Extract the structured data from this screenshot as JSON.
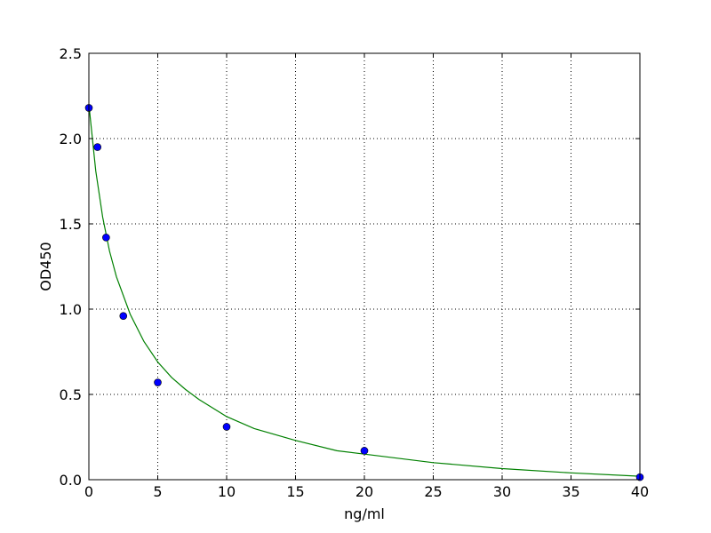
{
  "chart_data": {
    "type": "scatter",
    "title": "",
    "xlabel": "ng/ml",
    "ylabel": "OD450",
    "xlim": [
      0,
      40
    ],
    "ylim": [
      0,
      2.5
    ],
    "xticks": [
      0,
      5,
      10,
      15,
      20,
      25,
      30,
      35,
      40
    ],
    "yticks": [
      0.0,
      0.5,
      1.0,
      1.5,
      2.0,
      2.5
    ],
    "xtick_labels": [
      "0",
      "5",
      "10",
      "15",
      "20",
      "25",
      "30",
      "35",
      "40"
    ],
    "ytick_labels": [
      "0.0",
      "0.5",
      "1.0",
      "1.5",
      "2.0",
      "2.5"
    ],
    "grid": true,
    "series": [
      {
        "kind": "points",
        "color": "#0000ff",
        "x": [
          0,
          0.625,
          1.25,
          2.5,
          5,
          10,
          20,
          40
        ],
        "y": [
          2.18,
          1.95,
          1.42,
          0.96,
          0.57,
          0.31,
          0.17,
          0.015
        ]
      },
      {
        "kind": "fit-curve",
        "color": "#008000",
        "x": [
          0,
          0.5,
          1,
          1.5,
          2,
          3,
          4,
          5,
          6,
          7,
          8,
          10,
          12,
          15,
          18,
          20,
          25,
          30,
          35,
          40
        ],
        "y": [
          2.2,
          1.81,
          1.54,
          1.34,
          1.19,
          0.97,
          0.81,
          0.69,
          0.6,
          0.53,
          0.47,
          0.37,
          0.3,
          0.23,
          0.17,
          0.15,
          0.1,
          0.065,
          0.04,
          0.02
        ]
      }
    ]
  }
}
